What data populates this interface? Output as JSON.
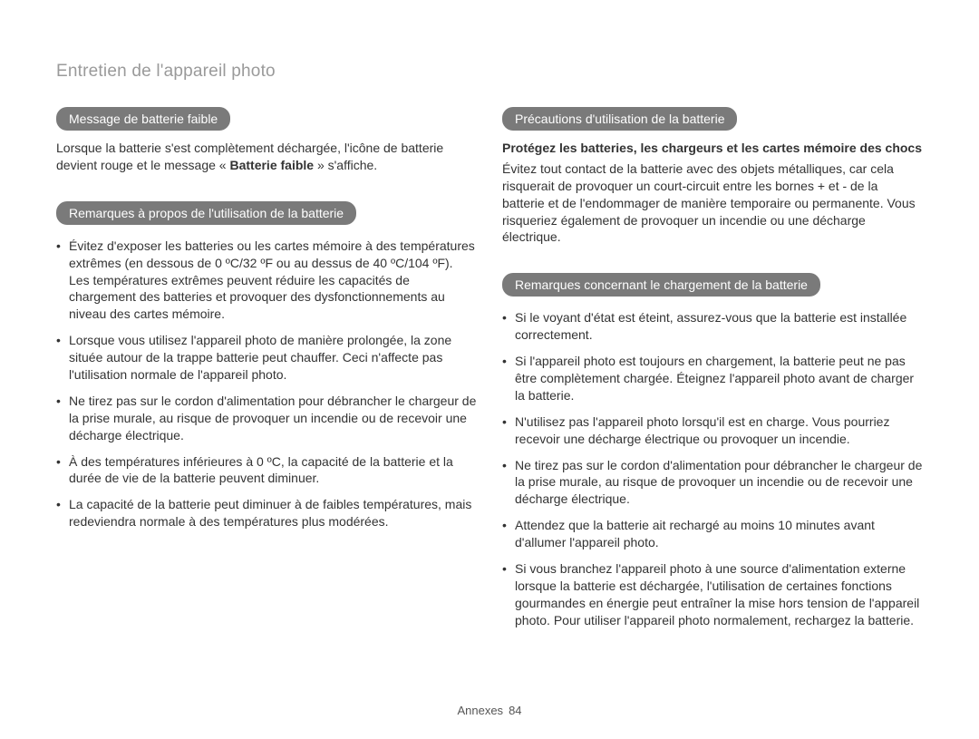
{
  "header": {
    "title": "Entretien de l'appareil photo"
  },
  "left": {
    "section1": {
      "heading": "Message de batterie faible",
      "para_pre": "Lorsque la batterie s'est complètement déchargée, l'icône de batterie devient rouge et le message « ",
      "para_bold": "Batterie faible",
      "para_post": " » s'affiche."
    },
    "section2": {
      "heading": "Remarques à propos de l'utilisation de la batterie",
      "bullets": [
        "Évitez d'exposer les batteries ou les cartes mémoire à des températures extrêmes (en dessous de 0 ºC/32 ºF ou au dessus de 40 ºC/104 ºF). Les températures extrêmes peuvent réduire les capacités de chargement des batteries et provoquer des dysfonctionnements au niveau des cartes mémoire.",
        "Lorsque vous utilisez l'appareil photo de manière prolongée, la zone située autour de la trappe batterie peut chauffer. Ceci n'affecte pas l'utilisation normale de l'appareil photo.",
        "Ne tirez pas sur le cordon d'alimentation pour débrancher le chargeur de la prise murale, au risque de provoquer un incendie ou de recevoir une décharge électrique.",
        "À des températures inférieures à 0 ºC, la capacité de la batterie et la durée de vie de la batterie peuvent diminuer.",
        "La capacité de la batterie peut diminuer à de faibles températures, mais redeviendra normale à des températures plus modérées."
      ]
    }
  },
  "right": {
    "section1": {
      "heading": "Précautions d'utilisation de la batterie",
      "subhead": "Protégez les batteries, les chargeurs et les cartes mémoire des chocs",
      "para": "Évitez tout contact de la batterie avec des objets métalliques, car cela risquerait de provoquer un court-circuit entre les bornes + et - de la batterie et de l'endommager de manière temporaire ou permanente. Vous risqueriez également de provoquer un incendie ou une décharge électrique."
    },
    "section2": {
      "heading": "Remarques concernant le chargement de la batterie",
      "bullets": [
        "Si le voyant d'état est éteint, assurez-vous que la batterie est installée correctement.",
        "Si l'appareil photo est toujours en chargement, la batterie peut ne pas être complètement chargée. Éteignez l'appareil photo avant de charger la batterie.",
        "N'utilisez pas l'appareil photo lorsqu'il est en charge. Vous pourriez recevoir une décharge électrique ou provoquer un incendie.",
        "Ne tirez pas sur le cordon d'alimentation pour débrancher le chargeur de la prise murale, au risque de provoquer un incendie ou de recevoir une décharge électrique.",
        "Attendez que la batterie ait rechargé au moins 10 minutes avant d'allumer l'appareil photo.",
        "Si vous branchez l'appareil photo à une source d'alimentation externe lorsque la batterie est déchargée, l'utilisation de certaines fonctions gourmandes en énergie peut entraîner la mise hors tension de l'appareil photo. Pour utiliser l'appareil photo normalement, rechargez la batterie."
      ]
    }
  },
  "footer": {
    "label": "Annexes",
    "page": "84"
  }
}
